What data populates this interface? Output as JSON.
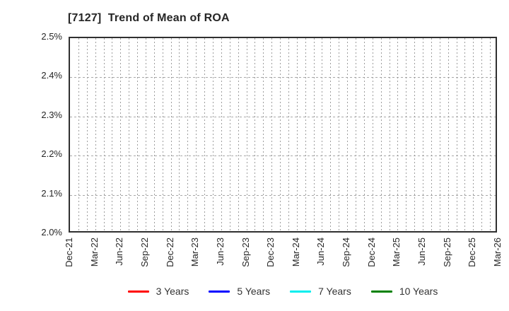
{
  "header": {
    "title": "[7127]  Trend of Mean of ROA"
  },
  "y_axis": {
    "tick_labels": [
      "2.5%",
      "2.4%",
      "2.3%",
      "2.2%",
      "2.1%",
      "2.0%"
    ]
  },
  "x_axis": {
    "tick_labels": [
      "Dec-21",
      "Mar-22",
      "Jun-22",
      "Sep-22",
      "Dec-22",
      "Mar-23",
      "Jun-23",
      "Sep-23",
      "Dec-23",
      "Mar-24",
      "Jun-24",
      "Sep-24",
      "Dec-24",
      "Mar-25",
      "Jun-25",
      "Sep-25",
      "Dec-25",
      "Mar-26"
    ]
  },
  "legend": {
    "items": [
      {
        "label": "3 Years",
        "color": "#ff0000"
      },
      {
        "label": "5 Years",
        "color": "#0000ff"
      },
      {
        "label": "7 Years",
        "color": "#00eeee"
      },
      {
        "label": "10 Years",
        "color": "#008000"
      }
    ]
  },
  "chart_data": {
    "type": "line",
    "title": "[7127]  Trend of Mean of ROA",
    "x": [
      "Dec-21",
      "Mar-22",
      "Jun-22",
      "Sep-22",
      "Dec-22",
      "Mar-23",
      "Jun-23",
      "Sep-23",
      "Dec-23",
      "Mar-24",
      "Jun-24",
      "Sep-24",
      "Dec-24",
      "Mar-25",
      "Jun-25",
      "Sep-25",
      "Dec-25",
      "Mar-26"
    ],
    "series": [
      {
        "name": "3 Years",
        "color": "#ff0000",
        "values": []
      },
      {
        "name": "5 Years",
        "color": "#0000ff",
        "values": []
      },
      {
        "name": "7 Years",
        "color": "#00eeee",
        "values": []
      },
      {
        "name": "10 Years",
        "color": "#008000",
        "values": []
      }
    ],
    "ylabel": "",
    "xlabel": "",
    "ylim": [
      2.0,
      2.5
    ],
    "ytick_format": "percent",
    "grid": true,
    "grid_minor_x": "monthly",
    "legend_position": "bottom"
  }
}
